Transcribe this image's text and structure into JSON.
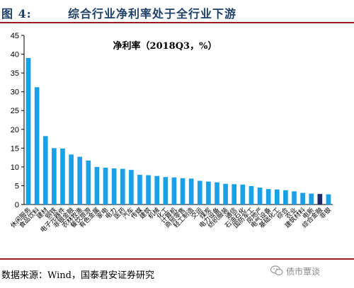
{
  "header": {
    "figure_label": "图 4:",
    "title": "综合行业净利率处于全行业下游"
  },
  "chart_data": {
    "type": "bar",
    "title": "净利率（2018Q3，%）",
    "xlabel": "",
    "ylabel": "",
    "ylim": [
      0,
      45
    ],
    "yticks": [
      0,
      5,
      10,
      15,
      20,
      25,
      30,
      35,
      40,
      45
    ],
    "grid": false,
    "legend": "none",
    "categories": [
      "休闲服务",
      "食品饮料",
      "建材",
      "钢铁",
      "电子元器件",
      "非银金融",
      "农林牧渔",
      "餐饮旅游",
      "有色金属",
      "家电",
      "电力",
      "医药",
      "汽车",
      "传媒",
      "建筑",
      "机械",
      "化工",
      "计算机",
      "商贸零售",
      "轻工制造",
      "交运",
      "煤炭",
      "电力设备",
      "纺织服装",
      "通信",
      "石油石化",
      "国防军工",
      "房地产",
      "电气设备",
      "基础化工",
      "综合",
      "农业",
      "建筑材料",
      "电新",
      "综合金融",
      "非银"
    ],
    "values": [
      39.0,
      31.2,
      18.2,
      15.0,
      14.9,
      13.3,
      12.7,
      11.7,
      10.0,
      9.8,
      9.6,
      9.5,
      9.2,
      7.9,
      7.8,
      7.6,
      7.3,
      7.2,
      7.0,
      6.9,
      6.3,
      6.1,
      5.9,
      5.5,
      5.4,
      5.3,
      4.9,
      4.5,
      4.1,
      4.0,
      3.8,
      3.5,
      3.1,
      2.9,
      2.8,
      2.7
    ],
    "highlight_index": 34,
    "colors": {
      "bar": "#1aa0e6",
      "highlight": "#1f2a6b",
      "axis": "#000000"
    }
  },
  "footer": {
    "source": "数据来源：Wind，国泰君安证券研究"
  },
  "watermark": {
    "text": "债市覃谈",
    "icon": "wechat-icon"
  },
  "colors": {
    "header_text": "#1f3f66",
    "rule": "#9a1c1c"
  }
}
